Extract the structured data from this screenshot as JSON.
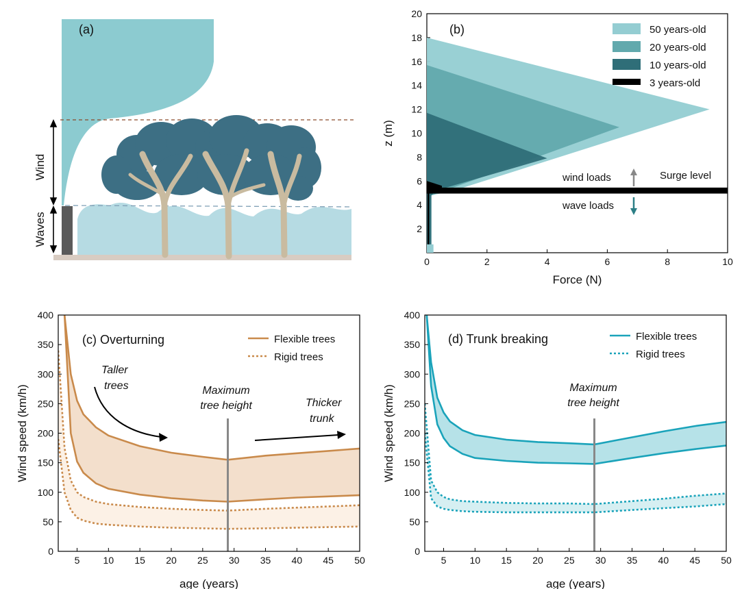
{
  "panel_a": {
    "label": "(a)",
    "wind_label": "Wind",
    "waves_label": "Waves",
    "colors": {
      "wind_fill": "#8ccbd0",
      "wave_fill": "#b6dbe3",
      "canopy": "#3d6f84",
      "trunk": "#c9bba0",
      "ground": "#d8ccc2",
      "wall": "#5a5a5a"
    }
  },
  "colors": {
    "y50": "#94cdd2",
    "y20": "#62a9ad",
    "y10": "#2f6e78",
    "y3": "#000000",
    "flex_c": "#c98a4b",
    "fill_c_dark": "#f3dfcc",
    "fill_c_light": "#fcf1e6",
    "flex_d": "#1aa3ba",
    "fill_d": "#b6e2e8",
    "grey": "#888888",
    "surge": "#3a90a8",
    "wave_arrow": "#2c7f86"
  },
  "chart_data": [
    {
      "type": "area",
      "panel_label": "(b)",
      "xlabel": "Force (N)",
      "ylabel": "z (m)",
      "xlim": [
        0,
        10
      ],
      "ylim": [
        0,
        20
      ],
      "xticks": [
        0,
        2,
        4,
        6,
        8,
        10
      ],
      "yticks": [
        2,
        4,
        6,
        8,
        10,
        12,
        14,
        16,
        18,
        20
      ],
      "surge_level": 5.2,
      "surge_label": "Surge level",
      "wind_loads_label": "wind loads",
      "wave_loads_label": "wave loads",
      "legend": [
        "50 years-old",
        "20 years-old",
        "10 years-old",
        "3 years-old"
      ],
      "series": [
        {
          "name": "50 years-old",
          "color_key": "y50",
          "peak_force": 9.4,
          "peak_z": 12,
          "top_z": 18,
          "base_z": 5.2,
          "base_force": 0.9
        },
        {
          "name": "20 years-old",
          "color_key": "y20",
          "peak_force": 6.4,
          "peak_z": 10.5,
          "top_z": 15.7,
          "base_z": 5.2,
          "base_force": 0.6
        },
        {
          "name": "10 years-old",
          "color_key": "y10",
          "peak_force": 4.0,
          "peak_z": 7.9,
          "top_z": 11.7,
          "base_z": 5.2,
          "base_force": 0.3
        },
        {
          "name": "3 years-old",
          "color_key": "y3",
          "peak_force": 10,
          "peak_z": 5.2,
          "top_z": 6.0,
          "base_z": 5.2,
          "base_force": 0.1
        }
      ]
    },
    {
      "type": "line",
      "panel_label": "(c) Overturning",
      "xlabel": "age (years)",
      "ylabel": "Wind speed (km/h)",
      "xlim": [
        2,
        50
      ],
      "ylim": [
        0,
        400
      ],
      "xticks": [
        5,
        10,
        15,
        20,
        25,
        30,
        35,
        40,
        45,
        50
      ],
      "yticks": [
        0,
        50,
        100,
        150,
        200,
        250,
        300,
        350,
        400
      ],
      "max_height_age": 29,
      "annotations": {
        "taller": [
          "Taller",
          "trees"
        ],
        "maxh": [
          "Maximum",
          "tree height"
        ],
        "thicker": [
          "Thicker",
          "trunk"
        ]
      },
      "legend": [
        "Flexible trees",
        "Rigid trees"
      ],
      "series": [
        {
          "name": "Flexible trees",
          "style": "solid",
          "x": [
            3,
            4,
            5,
            6,
            8,
            10,
            15,
            20,
            25,
            29,
            35,
            40,
            45,
            50
          ],
          "upper": [
            400,
            300,
            255,
            232,
            210,
            196,
            178,
            167,
            160,
            155,
            162,
            166,
            170,
            174
          ],
          "lower": [
            400,
            200,
            152,
            133,
            115,
            106,
            96,
            90,
            86,
            84,
            88,
            91,
            93,
            95
          ]
        },
        {
          "name": "Rigid trees",
          "style": "dotted",
          "x": [
            2,
            3,
            4,
            5,
            6,
            8,
            10,
            15,
            20,
            25,
            29,
            35,
            40,
            45,
            50
          ],
          "upper": [
            340,
            175,
            120,
            100,
            92,
            84,
            80,
            75,
            72,
            70,
            69,
            72,
            74,
            76,
            78
          ],
          "lower": [
            190,
            100,
            70,
            57,
            52,
            47,
            45,
            42,
            40,
            39,
            38,
            39,
            40,
            41,
            42
          ]
        }
      ]
    },
    {
      "type": "line",
      "panel_label": "(d) Trunk breaking",
      "xlabel": "age (years)",
      "ylabel": "Wind speed (km/h)",
      "xlim": [
        2,
        50
      ],
      "ylim": [
        0,
        400
      ],
      "xticks": [
        5,
        10,
        15,
        20,
        25,
        30,
        35,
        40,
        45,
        50
      ],
      "yticks": [
        0,
        50,
        100,
        150,
        200,
        250,
        300,
        350,
        400
      ],
      "max_height_age": 29,
      "annotations": {
        "maxh": [
          "Maximum",
          "tree height"
        ]
      },
      "legend": [
        "Flexible trees",
        "Rigid trees"
      ],
      "series": [
        {
          "name": "Flexible trees",
          "style": "solid",
          "x": [
            2.3,
            3,
            4,
            5,
            6,
            8,
            10,
            15,
            20,
            25,
            29,
            35,
            40,
            45,
            50
          ],
          "upper": [
            400,
            320,
            260,
            235,
            220,
            205,
            197,
            189,
            185,
            183,
            181,
            193,
            203,
            212,
            219
          ],
          "lower": [
            400,
            280,
            215,
            192,
            178,
            165,
            158,
            153,
            150,
            149,
            148,
            158,
            166,
            173,
            179
          ]
        },
        {
          "name": "Rigid trees",
          "style": "dotted",
          "x": [
            2,
            3,
            4,
            5,
            6,
            8,
            10,
            15,
            20,
            25,
            29,
            35,
            40,
            45,
            50
          ],
          "upper": [
            250,
            120,
            100,
            92,
            88,
            85,
            84,
            82,
            81,
            81,
            80,
            85,
            89,
            94,
            98
          ],
          "lower": [
            200,
            90,
            76,
            72,
            70,
            68,
            67,
            66,
            66,
            66,
            66,
            70,
            73,
            76,
            80
          ]
        }
      ]
    }
  ]
}
